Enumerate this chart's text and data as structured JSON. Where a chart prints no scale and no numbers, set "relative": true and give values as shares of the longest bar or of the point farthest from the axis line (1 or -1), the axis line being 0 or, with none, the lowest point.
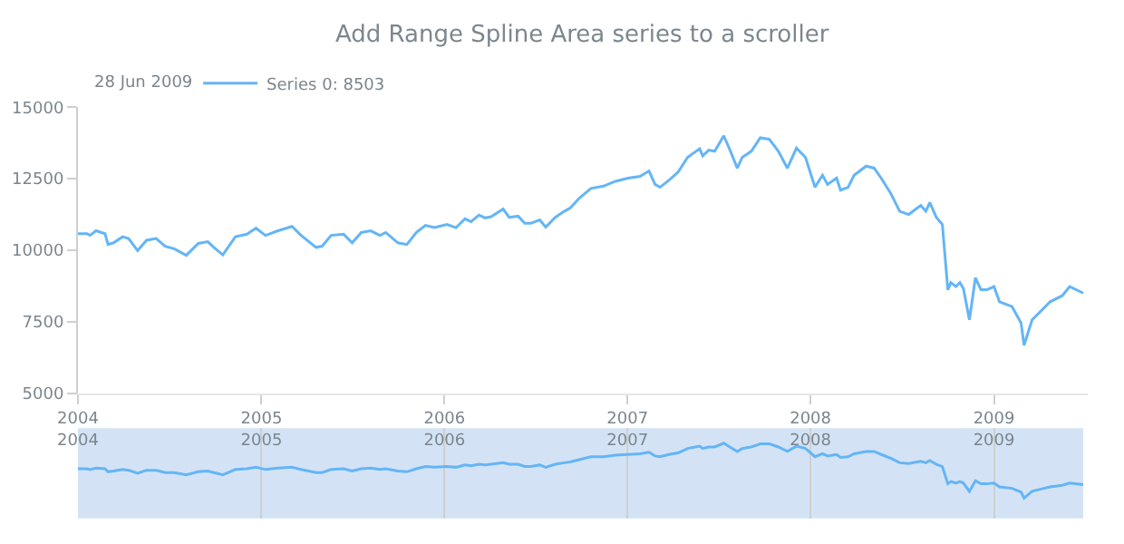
{
  "chart_data": [
    {
      "type": "line",
      "title": "Add Range Spline Area series to a scroller",
      "annotations": [
        "28 Jun 2009"
      ],
      "legend": "top left",
      "grid": false,
      "marker": "none",
      "line_style": "solid",
      "x": [
        "2004-01-01",
        "2004-01-19",
        "2004-01-25",
        "2004-02-06",
        "2004-02-24",
        "2004-03-01",
        "2004-03-12",
        "2004-03-30",
        "2004-04-11",
        "2004-04-29",
        "2004-05-17",
        "2004-06-05",
        "2004-06-23",
        "2004-07-11",
        "2004-08-04",
        "2004-08-28",
        "2004-09-16",
        "2004-09-28",
        "2004-10-16",
        "2004-11-10",
        "2004-12-03",
        "2004-12-21",
        "2005-01-09",
        "2005-02-03",
        "2005-03-03",
        "2005-03-21",
        "2005-04-20",
        "2005-05-02",
        "2005-05-20",
        "2005-06-14",
        "2005-07-01",
        "2005-07-19",
        "2005-08-07",
        "2005-08-25",
        "2005-09-06",
        "2005-09-30",
        "2005-10-18",
        "2005-11-06",
        "2005-11-24",
        "2005-12-12",
        "2006-01-06",
        "2006-01-24",
        "2006-02-11",
        "2006-02-23",
        "2006-03-11",
        "2006-03-23",
        "2006-04-04",
        "2006-04-28",
        "2006-05-10",
        "2006-05-28",
        "2006-06-10",
        "2006-06-22",
        "2006-07-10",
        "2006-07-22",
        "2006-08-10",
        "2006-08-28",
        "2006-09-09",
        "2006-09-27",
        "2006-10-20",
        "2006-11-14",
        "2006-12-08",
        "2007-01-02",
        "2007-01-26",
        "2007-02-13",
        "2007-02-25",
        "2007-03-07",
        "2007-03-25",
        "2007-04-12",
        "2007-05-01",
        "2007-05-25",
        "2007-05-31",
        "2007-06-12",
        "2007-06-24",
        "2007-07-12",
        "2007-07-24",
        "2007-08-08",
        "2007-08-18",
        "2007-09-05",
        "2007-09-23",
        "2007-10-11",
        "2007-10-29",
        "2007-11-16",
        "2007-12-04",
        "2007-12-22",
        "2008-01-10",
        "2008-01-25",
        "2008-02-04",
        "2008-02-22",
        "2008-03-01",
        "2008-03-16",
        "2008-03-28",
        "2008-04-21",
        "2008-05-07",
        "2008-05-21",
        "2008-06-09",
        "2008-06-27",
        "2008-07-15",
        "2008-08-08",
        "2008-08-18",
        "2008-08-26",
        "2008-09-08",
        "2008-09-20",
        "2008-10-01",
        "2008-10-07",
        "2008-10-17",
        "2008-10-25",
        "2008-11-01",
        "2008-11-13",
        "2008-11-25",
        "2008-12-06",
        "2008-12-18",
        "2009-01-01",
        "2009-01-12",
        "2009-02-06",
        "2009-02-24",
        "2009-03-02",
        "2009-03-18",
        "2009-04-05",
        "2009-04-23",
        "2009-05-17",
        "2009-06-01",
        "2009-06-28"
      ],
      "series": [
        {
          "name": "Series 0: 8503",
          "color": "#64b5f6",
          "values": [
            10580,
            10580,
            10520,
            10680,
            10580,
            10200,
            10260,
            10470,
            10410,
            9990,
            10350,
            10410,
            10140,
            10050,
            9820,
            10240,
            10300,
            10100,
            9840,
            10470,
            10560,
            10770,
            10520,
            10680,
            10830,
            10520,
            10100,
            10140,
            10520,
            10560,
            10260,
            10620,
            10680,
            10520,
            10620,
            10260,
            10200,
            10620,
            10870,
            10790,
            10900,
            10790,
            11100,
            11000,
            11230,
            11130,
            11170,
            11440,
            11150,
            11190,
            10940,
            10940,
            11060,
            10810,
            11150,
            11360,
            11480,
            11820,
            12160,
            12240,
            12410,
            12520,
            12580,
            12770,
            12300,
            12200,
            12450,
            12730,
            13250,
            13550,
            13300,
            13500,
            13460,
            14000,
            13520,
            12870,
            13250,
            13460,
            13930,
            13880,
            13460,
            12870,
            13570,
            13250,
            12200,
            12620,
            12300,
            12520,
            12100,
            12200,
            12620,
            12940,
            12870,
            12520,
            11990,
            11360,
            11250,
            11570,
            11360,
            11670,
            11150,
            10900,
            8620,
            8870,
            8730,
            8870,
            8660,
            7570,
            9040,
            8620,
            8620,
            8730,
            8200,
            8030,
            7460,
            6680,
            7570,
            7880,
            8200,
            8410,
            8730,
            8503
          ]
        }
      ],
      "xlim": [
        "2004-01-01",
        "2009-07-07"
      ],
      "xticks": [
        {
          "value": "2004-01-01",
          "label": "2004"
        },
        {
          "value": "2005-01-01",
          "label": "2005"
        },
        {
          "value": "2006-01-01",
          "label": "2006"
        },
        {
          "value": "2007-01-01",
          "label": "2007"
        },
        {
          "value": "2008-01-01",
          "label": "2008"
        },
        {
          "value": "2009-01-01",
          "label": "2009"
        }
      ],
      "ylim": [
        5000,
        15000
      ],
      "yticks": [
        5000,
        7500,
        10000,
        12500,
        15000
      ]
    },
    {
      "type": "line",
      "grid": "x",
      "tick_labels": "x",
      "marker": "none",
      "line_style": "solid",
      "bands": [
        {
          "axis": "x",
          "from": "2004-01-01",
          "to": "2009-06-28",
          "color": "#d3e3f5"
        }
      ],
      "x": [
        "2004-01-01",
        "2004-01-19",
        "2004-01-25",
        "2004-02-06",
        "2004-02-24",
        "2004-03-01",
        "2004-03-12",
        "2004-03-30",
        "2004-04-11",
        "2004-04-29",
        "2004-05-17",
        "2004-06-05",
        "2004-06-23",
        "2004-07-11",
        "2004-08-04",
        "2004-08-28",
        "2004-09-16",
        "2004-09-28",
        "2004-10-16",
        "2004-11-10",
        "2004-12-03",
        "2004-12-21",
        "2005-01-09",
        "2005-02-03",
        "2005-03-03",
        "2005-03-21",
        "2005-04-20",
        "2005-05-02",
        "2005-05-20",
        "2005-06-14",
        "2005-07-01",
        "2005-07-19",
        "2005-08-07",
        "2005-08-25",
        "2005-09-06",
        "2005-09-30",
        "2005-10-18",
        "2005-11-06",
        "2005-11-24",
        "2005-12-12",
        "2006-01-06",
        "2006-01-24",
        "2006-02-11",
        "2006-02-23",
        "2006-03-11",
        "2006-03-23",
        "2006-04-04",
        "2006-04-28",
        "2006-05-10",
        "2006-05-28",
        "2006-06-10",
        "2006-06-22",
        "2006-07-10",
        "2006-07-22",
        "2006-08-10",
        "2006-08-28",
        "2006-09-09",
        "2006-09-27",
        "2006-10-20",
        "2006-11-14",
        "2006-12-08",
        "2007-01-02",
        "2007-01-26",
        "2007-02-13",
        "2007-02-25",
        "2007-03-07",
        "2007-03-25",
        "2007-04-12",
        "2007-05-01",
        "2007-05-25",
        "2007-05-31",
        "2007-06-12",
        "2007-06-24",
        "2007-07-12",
        "2007-07-24",
        "2007-08-08",
        "2007-08-18",
        "2007-09-05",
        "2007-09-23",
        "2007-10-11",
        "2007-10-29",
        "2007-11-16",
        "2007-12-04",
        "2007-12-22",
        "2008-01-10",
        "2008-01-25",
        "2008-02-04",
        "2008-02-22",
        "2008-03-01",
        "2008-03-16",
        "2008-03-28",
        "2008-04-21",
        "2008-05-07",
        "2008-05-21",
        "2008-06-09",
        "2008-06-27",
        "2008-07-15",
        "2008-08-08",
        "2008-08-18",
        "2008-08-26",
        "2008-09-08",
        "2008-09-20",
        "2008-10-01",
        "2008-10-07",
        "2008-10-17",
        "2008-10-25",
        "2008-11-01",
        "2008-11-13",
        "2008-11-25",
        "2008-12-06",
        "2008-12-18",
        "2009-01-01",
        "2009-01-12",
        "2009-02-06",
        "2009-02-24",
        "2009-03-02",
        "2009-03-18",
        "2009-04-05",
        "2009-04-23",
        "2009-05-17",
        "2009-06-01",
        "2009-06-28"
      ],
      "series": [
        {
          "color": "#64b5f6",
          "values": [
            0.66,
            0.66,
            0.65,
            0.67,
            0.66,
            0.62,
            0.63,
            0.65,
            0.64,
            0.6,
            0.64,
            0.64,
            0.61,
            0.61,
            0.58,
            0.62,
            0.63,
            0.61,
            0.58,
            0.65,
            0.66,
            0.68,
            0.65,
            0.67,
            0.68,
            0.65,
            0.61,
            0.61,
            0.65,
            0.66,
            0.63,
            0.66,
            0.67,
            0.65,
            0.66,
            0.63,
            0.62,
            0.66,
            0.69,
            0.68,
            0.69,
            0.68,
            0.71,
            0.7,
            0.72,
            0.71,
            0.72,
            0.74,
            0.72,
            0.72,
            0.69,
            0.69,
            0.71,
            0.68,
            0.72,
            0.74,
            0.75,
            0.78,
            0.82,
            0.82,
            0.84,
            0.85,
            0.86,
            0.88,
            0.83,
            0.82,
            0.85,
            0.87,
            0.93,
            0.96,
            0.93,
            0.95,
            0.95,
            1,
            0.95,
            0.89,
            0.93,
            0.95,
            0.99,
            0.99,
            0.95,
            0.89,
            0.96,
            0.93,
            0.82,
            0.86,
            0.83,
            0.85,
            0.81,
            0.82,
            0.86,
            0.89,
            0.89,
            0.85,
            0.8,
            0.74,
            0.73,
            0.76,
            0.74,
            0.77,
            0.72,
            0.69,
            0.46,
            0.49,
            0.47,
            0.49,
            0.47,
            0.36,
            0.5,
            0.46,
            0.46,
            0.47,
            0.42,
            0.4,
            0.35,
            0.27,
            0.36,
            0.39,
            0.42,
            0.44,
            0.47,
            0.45
          ]
        }
      ],
      "relative": true,
      "xlim": [
        "2004-01-01",
        "2009-07-07"
      ],
      "xticks": [
        {
          "value": "2004-01-01",
          "label": "2004"
        },
        {
          "value": "2005-01-01",
          "label": "2005"
        },
        {
          "value": "2006-01-01",
          "label": "2006"
        },
        {
          "value": "2007-01-01",
          "label": "2007"
        },
        {
          "value": "2008-01-01",
          "label": "2008"
        },
        {
          "value": "2009-01-01",
          "label": "2009"
        }
      ]
    }
  ]
}
